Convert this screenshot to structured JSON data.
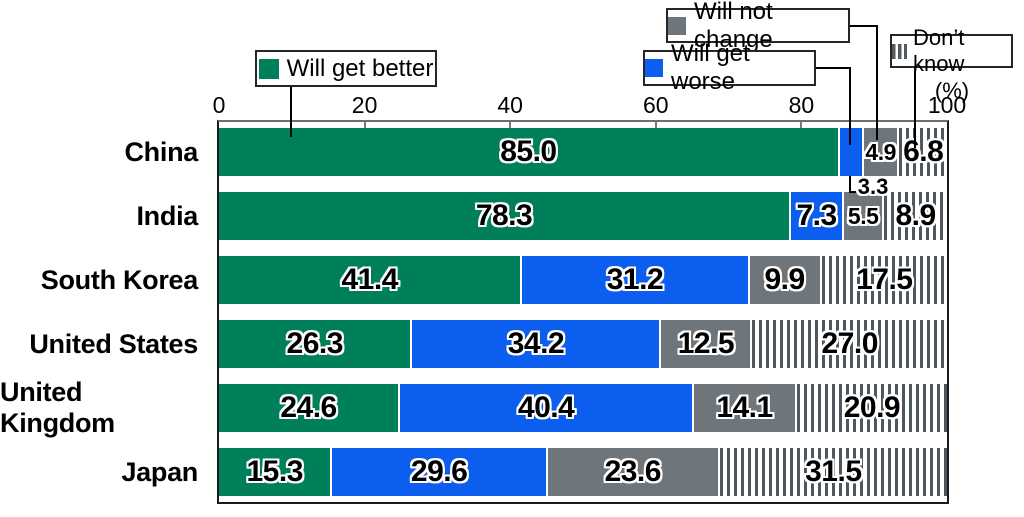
{
  "chart_data": {
    "type": "bar",
    "orientation": "horizontal",
    "stacked": true,
    "grid": false,
    "legend_position": "top",
    "x_axis": {
      "ticks": [
        0,
        20,
        40,
        60,
        80,
        100
      ],
      "range": [
        0,
        100
      ],
      "unit_label": "(%)"
    },
    "categories": [
      "China",
      "India",
      "South Korea",
      "United States",
      "United Kingdom",
      "Japan"
    ],
    "series": [
      {
        "name": "Will get better",
        "color": "#00805a",
        "style": "solid",
        "values": [
          85.0,
          78.3,
          41.4,
          26.3,
          24.6,
          15.3
        ]
      },
      {
        "name": "Will get worse",
        "color": "#0c5eee",
        "style": "solid",
        "values": [
          3.3,
          7.3,
          31.2,
          34.2,
          40.4,
          29.6
        ]
      },
      {
        "name": "Will not change",
        "color": "#6e757b",
        "style": "solid",
        "values": [
          4.9,
          5.5,
          9.9,
          12.5,
          14.1,
          23.6
        ]
      },
      {
        "name": "Don’t know",
        "color": "#4f575e",
        "style": "vertical-stripes",
        "values": [
          6.8,
          8.9,
          17.5,
          27.0,
          20.9,
          31.5
        ]
      }
    ],
    "callout": {
      "category": "China",
      "series": "Will get worse",
      "label": "3.3"
    }
  }
}
